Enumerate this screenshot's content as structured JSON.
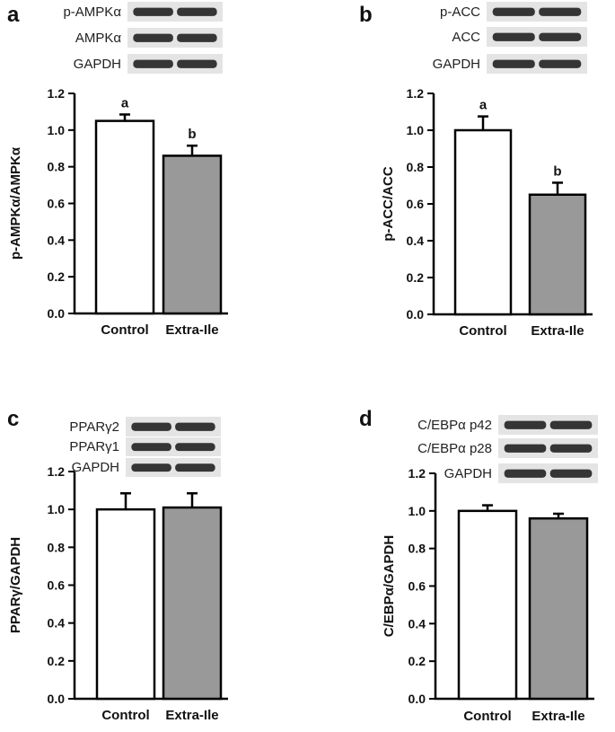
{
  "colors": {
    "control_fill": "#ffffff",
    "treatment_fill": "#999999",
    "outline": "#000000",
    "blot_background": "#e4e4e4",
    "band": "#1c1c1c"
  },
  "chart_data": [
    {
      "panel": "a",
      "type": "bar",
      "blot_labels": [
        "p-AMPKα",
        "AMPKα",
        "GAPDH"
      ],
      "categories": [
        "Control",
        "Extra-Ile"
      ],
      "values": [
        1.05,
        0.86
      ],
      "errors": [
        0.035,
        0.055
      ],
      "significance": [
        "a",
        "b"
      ],
      "ylabel": "p-AMPKα/AMPKα",
      "ylim": [
        0,
        1.2
      ],
      "yticks": [
        "0.0",
        "0.2",
        "0.4",
        "0.6",
        "0.8",
        "1.0",
        "1.2"
      ],
      "grid": false,
      "legend": "none"
    },
    {
      "panel": "b",
      "type": "bar",
      "blot_labels": [
        "p-ACC",
        "ACC",
        "GAPDH"
      ],
      "categories": [
        "Control",
        "Extra-Ile"
      ],
      "values": [
        1.0,
        0.65
      ],
      "errors": [
        0.075,
        0.065
      ],
      "significance": [
        "a",
        "b"
      ],
      "ylabel": "p-ACC/ACC",
      "ylim": [
        0,
        1.2
      ],
      "yticks": [
        "0.0",
        "0.2",
        "0.4",
        "0.6",
        "0.8",
        "1.0",
        "1.2"
      ],
      "grid": false,
      "legend": "none"
    },
    {
      "panel": "c",
      "type": "bar",
      "blot_labels": [
        "PPARγ2",
        "PPARγ1",
        "GAPDH"
      ],
      "categories": [
        "Control",
        "Extra-Ile"
      ],
      "values": [
        1.0,
        1.01
      ],
      "errors": [
        0.085,
        0.075
      ],
      "significance": [],
      "ylabel": "PPARγ/GAPDH",
      "ylim": [
        0,
        1.2
      ],
      "yticks": [
        "0.0",
        "0.2",
        "0.4",
        "0.6",
        "0.8",
        "1.0",
        "1.2"
      ],
      "grid": false,
      "legend": "none"
    },
    {
      "panel": "d",
      "type": "bar",
      "blot_labels": [
        "C/EBPα p42",
        "C/EBPα p28",
        "GAPDH"
      ],
      "categories": [
        "Control",
        "Extra-Ile"
      ],
      "values": [
        1.0,
        0.96
      ],
      "errors": [
        0.03,
        0.025
      ],
      "significance": [],
      "ylabel": "C/EBPα/GAPDH",
      "ylim": [
        0,
        1.2
      ],
      "yticks": [
        "0.0",
        "0.2",
        "0.4",
        "0.6",
        "0.8",
        "1.0",
        "1.2"
      ],
      "grid": false,
      "legend": "none"
    }
  ]
}
